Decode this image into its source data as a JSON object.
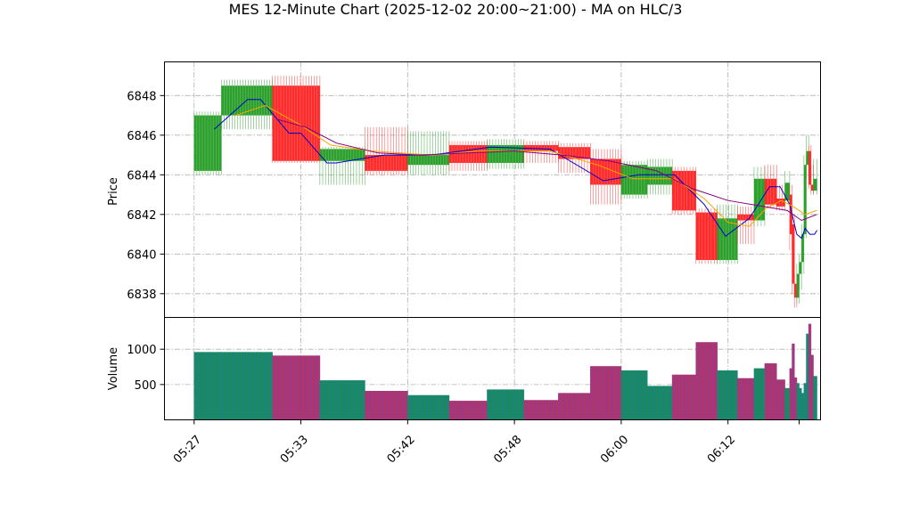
{
  "chart_data": {
    "type": "candlestick",
    "title": "MES 12-Minute Chart (2025-12-02 20:00~21:00) - MA on HLC/3",
    "price_panel": {
      "ylabel": "Price",
      "ylim": [
        6836.8,
        6849.7
      ],
      "yticks": [
        6838,
        6840,
        6842,
        6844,
        6846,
        6848
      ],
      "grid": true
    },
    "volume_panel": {
      "ylabel": "Volume",
      "ylim": [
        0,
        1450
      ],
      "yticks": [
        500,
        1000
      ],
      "grid": true
    },
    "time_axis": {
      "xlim": [
        "05:24.5",
        "06:19.8"
      ],
      "ticks": [
        "05:27",
        "05:33",
        "05:42",
        "05:48",
        "06:00",
        "06:12"
      ],
      "tick_positions": [
        "05:27",
        "05:36",
        "05:45",
        "05:54",
        "06:03",
        "06:12"
      ],
      "extra_tick": "06:18"
    },
    "bars": [
      {
        "t0": "05:27.0",
        "t1": "05:29.3",
        "open": 6844.2,
        "high": 6847.2,
        "low": 6844.0,
        "close": 6847.0,
        "volume": 960
      },
      {
        "t0": "05:29.3",
        "t1": "05:33.6",
        "open": 6847.0,
        "high": 6848.8,
        "low": 6846.3,
        "close": 6848.5,
        "volume": 960
      },
      {
        "t0": "05:33.6",
        "t1": "05:37.6",
        "open": 6848.5,
        "high": 6849.0,
        "low": 6844.6,
        "close": 6844.7,
        "volume": 910
      },
      {
        "t0": "05:37.6",
        "t1": "05:41.4",
        "open": 6844.7,
        "high": 6845.4,
        "low": 6843.5,
        "close": 6845.3,
        "volume": 560
      },
      {
        "t0": "05:41.4",
        "t1": "05:45.0",
        "open": 6845.0,
        "high": 6846.4,
        "low": 6844.0,
        "close": 6844.2,
        "volume": 410
      },
      {
        "t0": "05:45.0",
        "t1": "05:48.5",
        "open": 6844.5,
        "high": 6846.2,
        "low": 6844.0,
        "close": 6845.0,
        "volume": 350
      },
      {
        "t0": "05:48.5",
        "t1": "05:51.7",
        "open": 6845.5,
        "high": 6845.7,
        "low": 6844.2,
        "close": 6844.6,
        "volume": 270
      },
      {
        "t0": "05:51.7",
        "t1": "05:54.8",
        "open": 6844.6,
        "high": 6845.8,
        "low": 6844.3,
        "close": 6845.5,
        "volume": 430
      },
      {
        "t0": "05:54.8",
        "t1": "05:57.7",
        "open": 6845.5,
        "high": 6845.7,
        "low": 6844.6,
        "close": 6845.2,
        "volume": 280
      },
      {
        "t0": "05:57.7",
        "t1": "06:00.4",
        "open": 6845.4,
        "high": 6845.6,
        "low": 6844.1,
        "close": 6844.8,
        "volume": 380
      },
      {
        "t0": "06:00.4",
        "t1": "06:03.0",
        "open": 6844.8,
        "high": 6845.3,
        "low": 6842.5,
        "close": 6843.5,
        "volume": 760
      },
      {
        "t0": "06:03.0",
        "t1": "06:05.2",
        "open": 6843.0,
        "high": 6844.7,
        "low": 6842.8,
        "close": 6844.5,
        "volume": 700
      },
      {
        "t0": "06:05.2",
        "t1": "06:07.3",
        "open": 6843.5,
        "high": 6844.8,
        "low": 6843.0,
        "close": 6844.4,
        "volume": 480
      },
      {
        "t0": "06:07.3",
        "t1": "06:09.3",
        "open": 6844.2,
        "high": 6844.4,
        "low": 6842.0,
        "close": 6842.2,
        "volume": 640
      },
      {
        "t0": "06:09.3",
        "t1": "06:11.1",
        "open": 6842.1,
        "high": 6842.3,
        "low": 6839.5,
        "close": 6839.7,
        "volume": 1100
      },
      {
        "t0": "06:11.1",
        "t1": "06:12.8",
        "open": 6839.7,
        "high": 6842.5,
        "low": 6839.5,
        "close": 6841.8,
        "volume": 700
      },
      {
        "t0": "06:12.8",
        "t1": "06:14.2",
        "open": 6842.0,
        "high": 6842.4,
        "low": 6840.5,
        "close": 6841.7,
        "volume": 590
      },
      {
        "t0": "06:14.2",
        "t1": "06:15.1",
        "open": 6841.7,
        "high": 6844.4,
        "low": 6841.4,
        "close": 6843.8,
        "volume": 730
      },
      {
        "t0": "06:15.1",
        "t1": "06:16.1",
        "open": 6843.8,
        "high": 6844.5,
        "low": 6842.3,
        "close": 6842.5,
        "volume": 800
      },
      {
        "t0": "06:16.1",
        "t1": "06:16.8",
        "open": 6842.8,
        "high": 6843.5,
        "low": 6842.2,
        "close": 6842.4,
        "volume": 570
      },
      {
        "t0": "06:16.8",
        "t1": "06:17.2",
        "open": 6842.7,
        "high": 6844.2,
        "low": 6842.5,
        "close": 6843.6,
        "volume": 450
      },
      {
        "t0": "06:17.2",
        "t1": "06:17.4",
        "open": 6843.0,
        "high": 6843.5,
        "low": 6840.2,
        "close": 6841.0,
        "volume": 730
      },
      {
        "t0": "06:17.4",
        "t1": "06:17.6",
        "open": 6841.5,
        "high": 6842.0,
        "low": 6838.0,
        "close": 6838.5,
        "volume": 1080
      },
      {
        "t0": "06:17.6",
        "t1": "06:17.8",
        "open": 6838.5,
        "high": 6839.0,
        "low": 6837.3,
        "close": 6837.8,
        "volume": 600
      },
      {
        "t0": "06:17.8",
        "t1": "06:18.0",
        "open": 6837.8,
        "high": 6839.5,
        "low": 6837.5,
        "close": 6839.0,
        "volume": 520
      },
      {
        "t0": "06:18.0",
        "t1": "06:18.2",
        "open": 6839.0,
        "high": 6840.0,
        "low": 6838.2,
        "close": 6839.6,
        "volume": 450
      },
      {
        "t0": "06:18.2",
        "t1": "06:18.4",
        "open": 6839.6,
        "high": 6841.5,
        "low": 6839.0,
        "close": 6841.0,
        "volume": 380
      },
      {
        "t0": "06:18.4",
        "t1": "06:18.6",
        "open": 6841.0,
        "high": 6845.0,
        "low": 6840.8,
        "close": 6844.5,
        "volume": 520
      },
      {
        "t0": "06:18.6",
        "t1": "06:18.8",
        "open": 6844.5,
        "high": 6846.0,
        "low": 6843.8,
        "close": 6845.2,
        "volume": 1220
      },
      {
        "t0": "06:18.8",
        "t1": "06:19.0",
        "open": 6845.2,
        "high": 6845.5,
        "low": 6843.3,
        "close": 6843.5,
        "volume": 1360
      },
      {
        "t0": "06:19.0",
        "t1": "06:19.2",
        "open": 6843.5,
        "high": 6844.5,
        "low": 6843.0,
        "close": 6843.2,
        "volume": 920
      },
      {
        "t0": "06:19.2",
        "t1": "06:19.5",
        "open": 6843.2,
        "high": 6844.8,
        "low": 6843.0,
        "close": 6843.8,
        "volume": 620
      }
    ],
    "moving_averages": [
      {
        "color": "#0000cc",
        "points": [
          [
            "05:28.7",
            6846.3
          ],
          [
            "05:31.5",
            6847.8
          ],
          [
            "05:32.6",
            6847.8
          ],
          [
            "05:35.0",
            6846.1
          ],
          [
            "05:36.0",
            6846.1
          ],
          [
            "05:38.2",
            6844.6
          ],
          [
            "05:39.0",
            6844.6
          ],
          [
            "05:43.0",
            6845.0
          ],
          [
            "05:47.0",
            6845.0
          ],
          [
            "05:52.0",
            6845.4
          ],
          [
            "05:57.0",
            6845.3
          ],
          [
            "06:01.5",
            6843.7
          ],
          [
            "06:04.5",
            6844.0
          ],
          [
            "06:07.5",
            6844.0
          ],
          [
            "06:10.0",
            6842.5
          ],
          [
            "06:11.8",
            6840.9
          ],
          [
            "06:13.8",
            6841.8
          ],
          [
            "06:15.5",
            6843.4
          ],
          [
            "06:16.4",
            6843.4
          ],
          [
            "06:17.2",
            6842.5
          ],
          [
            "06:17.8",
            6841.0
          ],
          [
            "06:18.2",
            6840.8
          ],
          [
            "06:18.5",
            6841.3
          ],
          [
            "06:18.9",
            6841.0
          ],
          [
            "06:19.3",
            6841.0
          ],
          [
            "06:19.5",
            6841.2
          ]
        ]
      },
      {
        "color": "#ffa500",
        "points": [
          [
            "05:30.5",
            6847.0
          ],
          [
            "05:33.0",
            6847.5
          ],
          [
            "05:36.0",
            6846.5
          ],
          [
            "05:38.5",
            6845.5
          ],
          [
            "05:42.0",
            6845.2
          ],
          [
            "05:47.0",
            6845.0
          ],
          [
            "05:51.0",
            6845.2
          ],
          [
            "05:57.0",
            6845.2
          ],
          [
            "06:01.0",
            6844.5
          ],
          [
            "06:04.0",
            6843.8
          ],
          [
            "06:07.5",
            6843.8
          ],
          [
            "06:10.0",
            6842.8
          ],
          [
            "06:12.0",
            6841.6
          ],
          [
            "06:13.8",
            6841.4
          ],
          [
            "06:15.2",
            6842.3
          ],
          [
            "06:16.5",
            6842.7
          ],
          [
            "06:17.5",
            6842.4
          ],
          [
            "06:18.5",
            6842.0
          ],
          [
            "06:19.5",
            6842.2
          ]
        ]
      },
      {
        "color": "#800080",
        "points": [
          [
            "05:34.0",
            6846.8
          ],
          [
            "05:36.4",
            6846.4
          ],
          [
            "05:39.0",
            6845.6
          ],
          [
            "05:42.5",
            6845.1
          ],
          [
            "05:46.0",
            6845.0
          ],
          [
            "05:50.0",
            6845.1
          ],
          [
            "05:54.0",
            6845.2
          ],
          [
            "05:58.0",
            6845.0
          ],
          [
            "06:02.0",
            6844.7
          ],
          [
            "06:06.0",
            6844.2
          ],
          [
            "06:09.0",
            6843.3
          ],
          [
            "06:12.0",
            6842.7
          ],
          [
            "06:15.0",
            6842.4
          ],
          [
            "06:17.0",
            6842.2
          ],
          [
            "06:18.2",
            6841.7
          ],
          [
            "06:19.5",
            6842.0
          ]
        ]
      }
    ],
    "colors": {
      "up": "#2ca02c",
      "down": "#ff2a2a",
      "volume_up": "#1a8b5a",
      "volume_down": "#b0356a",
      "volume_stripe_up": "#1f77b4",
      "volume_stripe_down": "#7a3fb0"
    }
  }
}
